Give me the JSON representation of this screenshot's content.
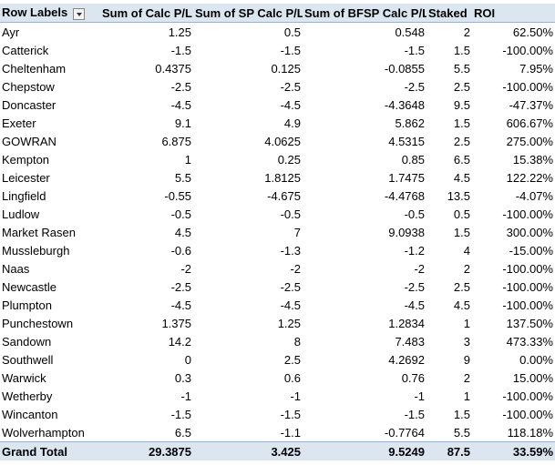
{
  "table": {
    "headers": [
      "Row Labels",
      "Sum of Calc P/L",
      "Sum of SP Calc P/L",
      "Sum of BFSP Calc P/L",
      "Staked",
      "ROI"
    ],
    "rows": [
      [
        "Ayr",
        "1.25",
        "0.5",
        "0.548",
        "2",
        "62.50%"
      ],
      [
        "Catterick",
        "-1.5",
        "-1.5",
        "-1.5",
        "1.5",
        "-100.00%"
      ],
      [
        "Cheltenham",
        "0.4375",
        "0.125",
        "-0.0855",
        "5.5",
        "7.95%"
      ],
      [
        "Chepstow",
        "-2.5",
        "-2.5",
        "-2.5",
        "2.5",
        "-100.00%"
      ],
      [
        "Doncaster",
        "-4.5",
        "-4.5",
        "-4.3648",
        "9.5",
        "-47.37%"
      ],
      [
        "Exeter",
        "9.1",
        "4.9",
        "5.862",
        "1.5",
        "606.67%"
      ],
      [
        "GOWRAN",
        "6.875",
        "4.0625",
        "4.5315",
        "2.5",
        "275.00%"
      ],
      [
        "Kempton",
        "1",
        "0.25",
        "0.85",
        "6.5",
        "15.38%"
      ],
      [
        "Leicester",
        "5.5",
        "1.8125",
        "1.7475",
        "4.5",
        "122.22%"
      ],
      [
        "Lingfield",
        "-0.55",
        "-4.675",
        "-4.4768",
        "13.5",
        "-4.07%"
      ],
      [
        "Ludlow",
        "-0.5",
        "-0.5",
        "-0.5",
        "0.5",
        "-100.00%"
      ],
      [
        "Market Rasen",
        "4.5",
        "7",
        "9.0938",
        "1.5",
        "300.00%"
      ],
      [
        "Mussleburgh",
        "-0.6",
        "-1.3",
        "-1.2",
        "4",
        "-15.00%"
      ],
      [
        "Naas",
        "-2",
        "-2",
        "-2",
        "2",
        "-100.00%"
      ],
      [
        "Newcastle",
        "-2.5",
        "-2.5",
        "-2.5",
        "2.5",
        "-100.00%"
      ],
      [
        "Plumpton",
        "-4.5",
        "-4.5",
        "-4.5",
        "4.5",
        "-100.00%"
      ],
      [
        "Punchestown",
        "1.375",
        "1.25",
        "1.2834",
        "1",
        "137.50%"
      ],
      [
        "Sandown",
        "14.2",
        "8",
        "7.483",
        "3",
        "473.33%"
      ],
      [
        "Southwell",
        "0",
        "2.5",
        "4.2692",
        "9",
        "0.00%"
      ],
      [
        "Warwick",
        "0.3",
        "0.6",
        "0.76",
        "2",
        "15.00%"
      ],
      [
        "Wetherby",
        "-1",
        "-1",
        "-1",
        "1",
        "-100.00%"
      ],
      [
        "Wincanton",
        "-1.5",
        "-1.5",
        "-1.5",
        "1.5",
        "-100.00%"
      ],
      [
        "Wolverhampton",
        "6.5",
        "-1.1",
        "-0.7764",
        "5.5",
        "118.18%"
      ]
    ],
    "total": [
      "Grand Total",
      "29.3875",
      "3.425",
      "9.5249",
      "87.5",
      "33.59%"
    ]
  }
}
